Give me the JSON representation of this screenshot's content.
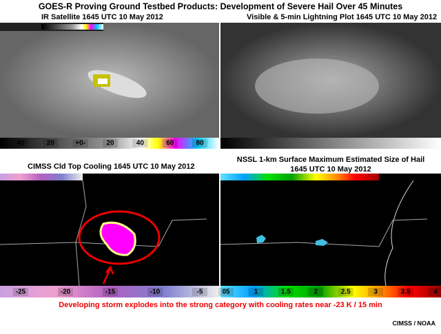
{
  "header": {
    "title": "GOES-R Proving Ground Testbed Products: Development of Severe Hail Over 45 Minutes"
  },
  "panels": [
    {
      "label": "IR Satellite  1645 UTC 10 May 2012",
      "scale_labels": [
        "40",
        "20",
        "+0-",
        "20",
        "40",
        "60",
        "80"
      ]
    },
    {
      "label": "Visible & 5-min Lightning Plot  1645 UTC 10 May 2012",
      "scale_labels": []
    },
    {
      "label": "CIMSS Cld Top Cooling 1645 UTC 10 May 2012",
      "scale_labels": [
        "-25",
        "-20",
        "-15",
        "-10",
        "-5"
      ]
    },
    {
      "label": [
        "NSSL 1-km Surface Maximum Estimated Size of Hail",
        "1645 UTC 10 May 2012"
      ],
      "scale_labels": [
        "05",
        "1",
        "1.5",
        "2",
        "2.5",
        "3",
        "3.5",
        "4"
      ]
    }
  ],
  "caption": "Developing storm explodes into the strong category with cooling rates near -23 K / 15 min",
  "credit": "CIMSS / NOAA"
}
